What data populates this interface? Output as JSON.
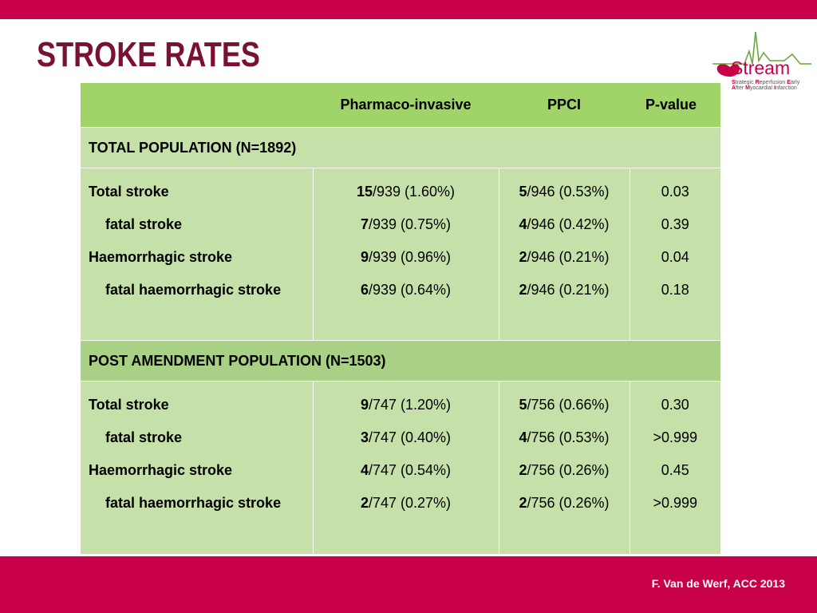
{
  "slide": {
    "title": "STROKE RATES",
    "footer_credit": "F. Van de Werf, ACC 2013",
    "colors": {
      "brand": "#c8004a",
      "title": "#7a1035",
      "header_green": "#a0d468",
      "cell_green": "#c5e0a8",
      "section_dark_green": "#a9d185"
    }
  },
  "logo": {
    "word": "Stream",
    "sub_line1": [
      "S",
      "trategic ",
      "R",
      "eperfusion ",
      "E",
      "arly"
    ],
    "sub_line2": [
      "A",
      "fter ",
      "M",
      "yocardial ",
      "I",
      "nfarction"
    ],
    "icon": "heart-ecg-icon"
  },
  "table": {
    "headers": [
      "",
      "Pharmaco-invasive",
      "PPCI",
      "P-value"
    ],
    "sections": [
      {
        "title": "TOTAL POPULATION  (N=1892)",
        "rows": [
          {
            "label": "Total  stroke",
            "indent": false,
            "pi_n": "15",
            "pi_rest": "/939 (1.60%)",
            "ppci_n": "5",
            "ppci_rest": "/946 (0.53%)",
            "p": "0.03"
          },
          {
            "label": "fatal stroke",
            "indent": true,
            "pi_n": "7",
            "pi_rest": "/939 (0.75%)",
            "ppci_n": "4",
            "ppci_rest": "/946 (0.42%)",
            "p": "0.39"
          },
          {
            "label": "Haemorrhagic stroke",
            "indent": false,
            "pi_n": "9",
            "pi_rest": "/939 (0.96%)",
            "ppci_n": "2",
            "ppci_rest": "/946 (0.21%)",
            "p": "0.04"
          },
          {
            "label": "fatal haemorrhagic stroke",
            "indent": true,
            "pi_n": "6",
            "pi_rest": "/939 (0.64%)",
            "ppci_n": "2",
            "ppci_rest": "/946 (0.21%)",
            "p": "0.18"
          }
        ]
      },
      {
        "title": "POST AMENDMENT POPULATION (N=1503)",
        "rows": [
          {
            "label": "Total  stroke",
            "indent": false,
            "pi_n": "9",
            "pi_rest": "/747 (1.20%)",
            "ppci_n": "5",
            "ppci_rest": "/756 (0.66%)",
            "p": "0.30"
          },
          {
            "label": "fatal stroke",
            "indent": true,
            "pi_n": "3",
            "pi_rest": "/747 (0.40%)",
            "ppci_n": "4",
            "ppci_rest": "/756 (0.53%)",
            "p": ">0.999"
          },
          {
            "label": "Haemorrhagic stroke",
            "indent": false,
            "pi_n": "4",
            "pi_rest": "/747 (0.54%)",
            "ppci_n": "2",
            "ppci_rest": "/756 (0.26%)",
            "p": "0.45"
          },
          {
            "label": "fatal haemorrhagic stroke",
            "indent": true,
            "pi_n": "2",
            "pi_rest": "/747 (0.27%)",
            "ppci_n": "2",
            "ppci_rest": "/756 (0.26%)",
            "p": ">0.999"
          }
        ]
      }
    ]
  }
}
